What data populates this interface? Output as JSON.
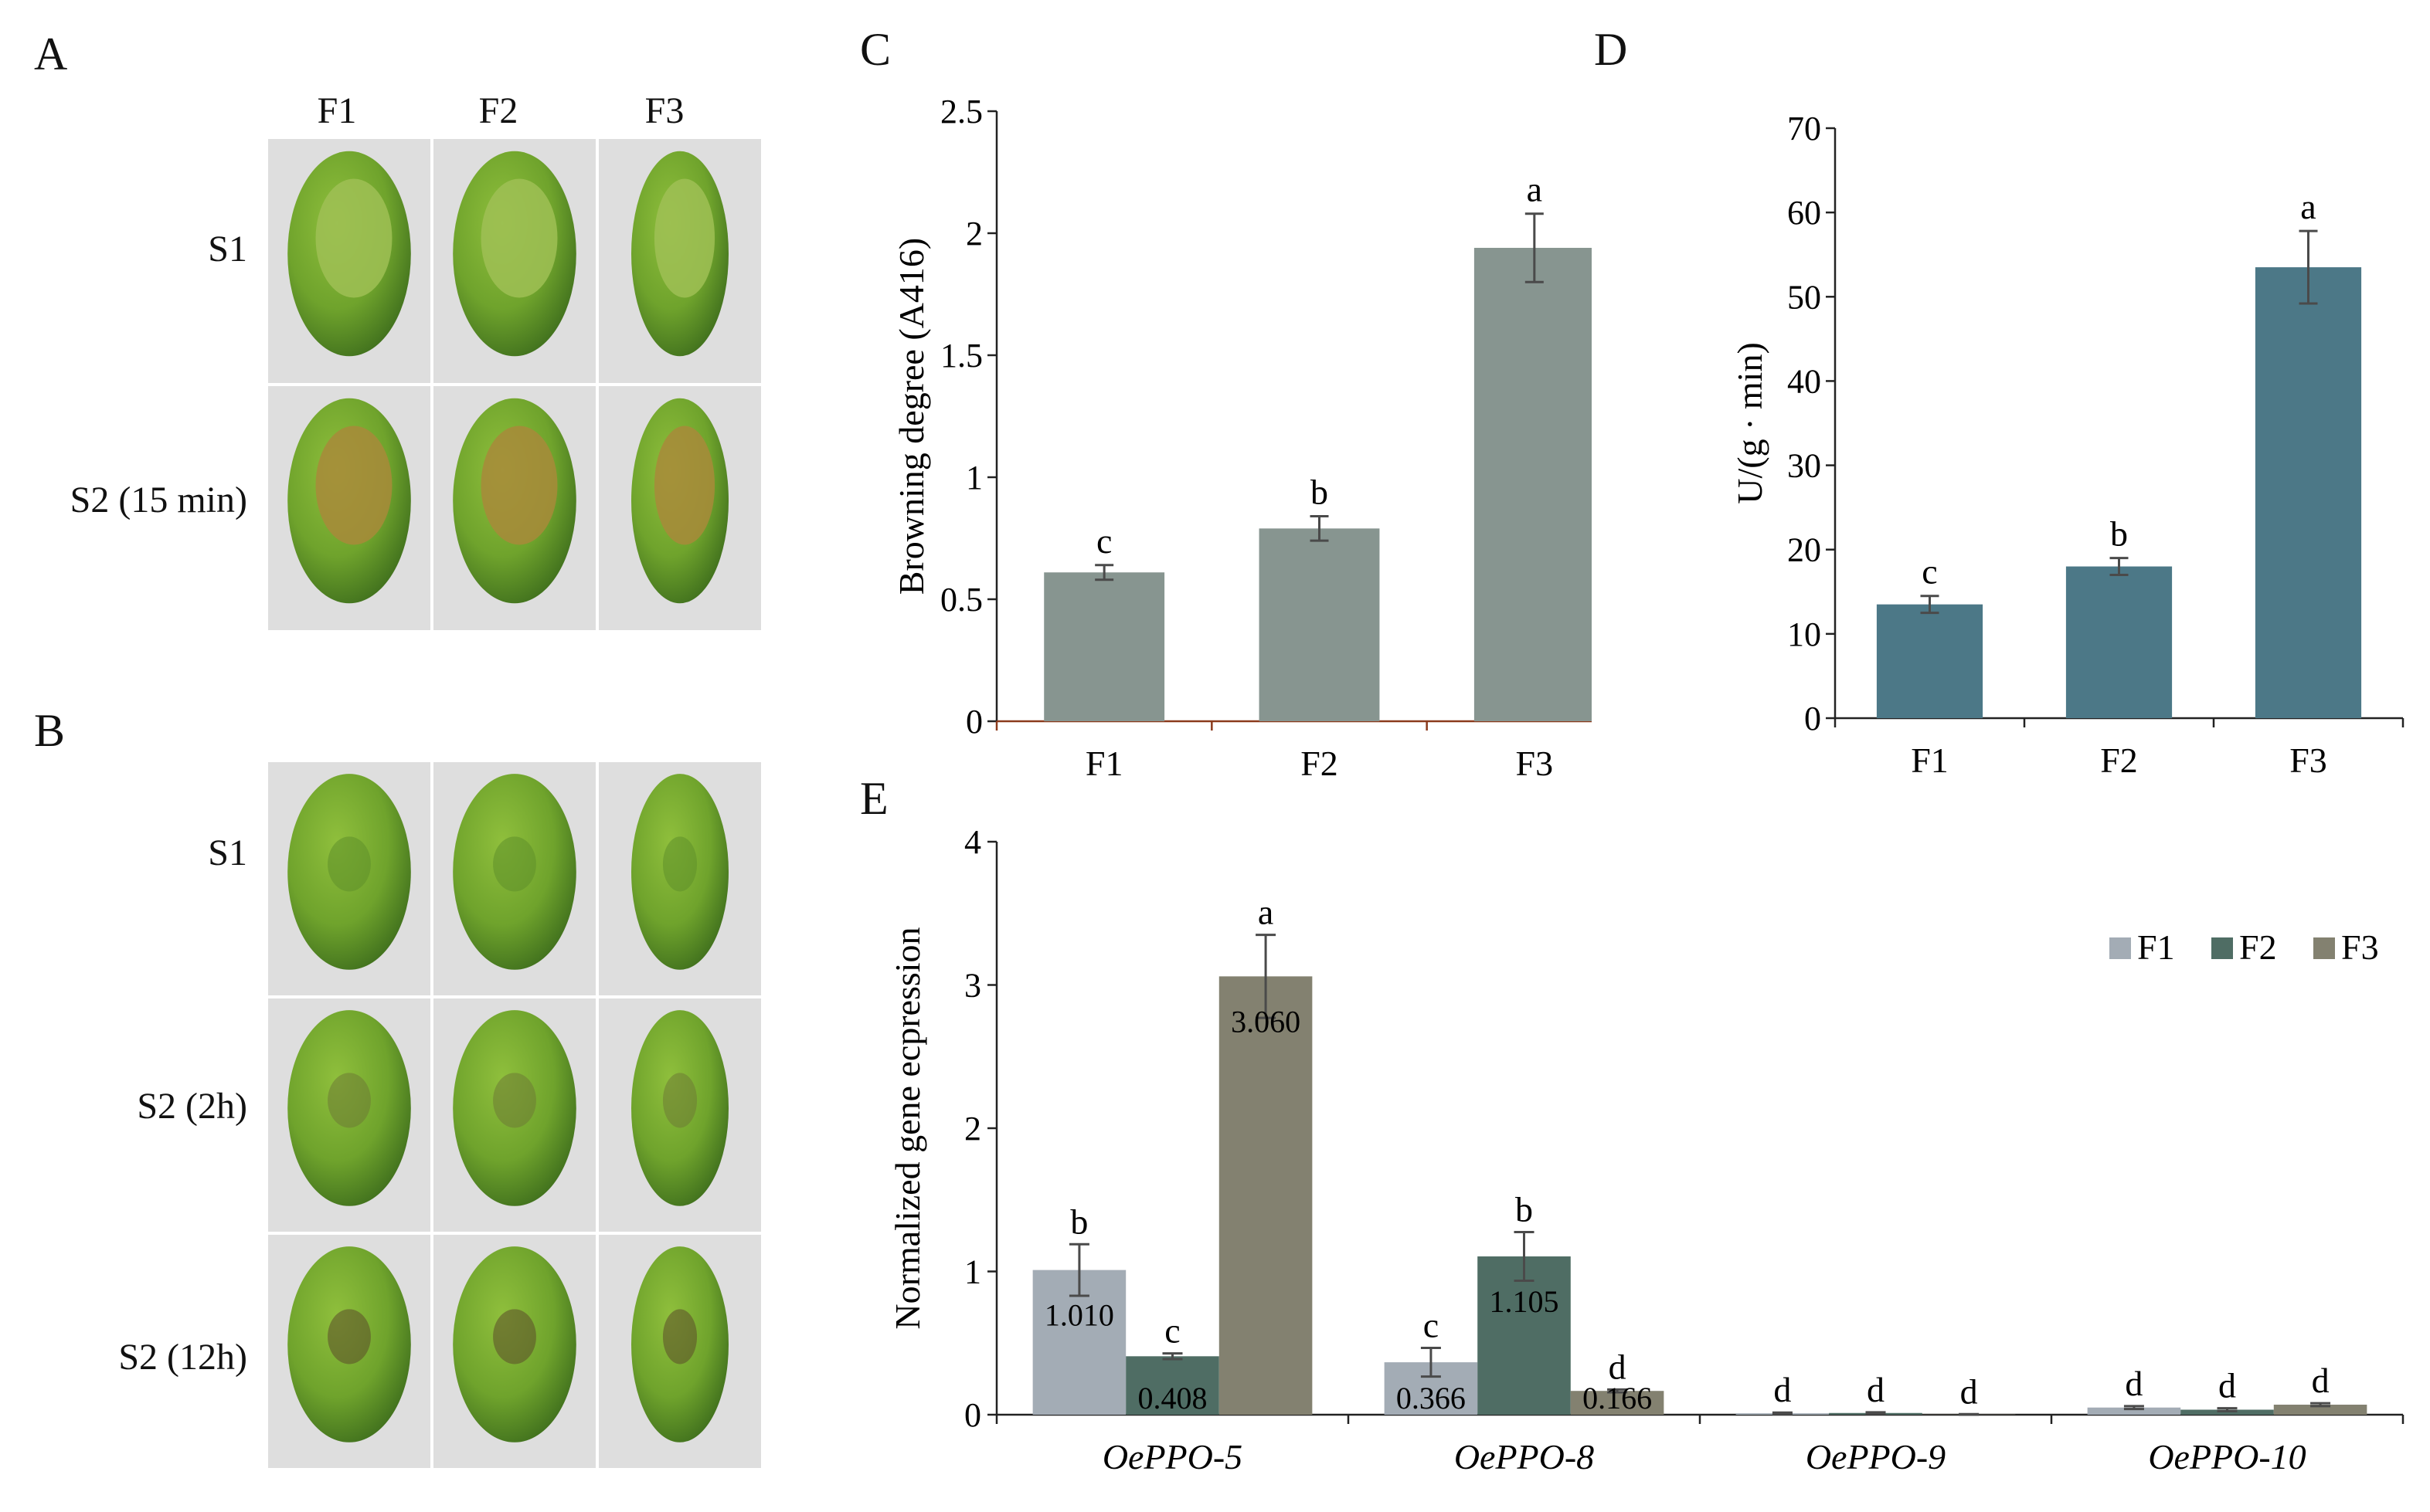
{
  "panels": {
    "A": {
      "letter": "A",
      "col_labels": [
        "F1",
        "F2",
        "F3"
      ],
      "row_labels": [
        "S1",
        "S2 (15 min)"
      ]
    },
    "B": {
      "letter": "B",
      "row_labels": [
        "S1",
        "S2 (2h)",
        "S2 (12h)"
      ]
    },
    "C": {
      "letter": "C"
    },
    "D": {
      "letter": "D"
    },
    "E": {
      "letter": "E"
    }
  },
  "colors": {
    "C_bar": "#879590",
    "C_axis": "#8b3a1c",
    "D_bar": "#4c7887",
    "E_F1": "#a3acb5",
    "E_F2": "#4f6d64",
    "E_F3": "#838170",
    "error": "#4a4a4a",
    "olive_light": "#8fbf3c",
    "olive_mid": "#6fa32c",
    "olive_dark": "#3f6f1d",
    "photo_bg": "#dedede"
  },
  "chart_data": [
    {
      "id": "C",
      "type": "bar",
      "title": "",
      "categories": [
        "F1",
        "F2",
        "F3"
      ],
      "values": [
        0.61,
        0.79,
        1.94
      ],
      "errors": [
        0.03,
        0.05,
        0.14
      ],
      "sig": [
        "c",
        "b",
        "a"
      ],
      "ylabel": "Browning degree (A416)",
      "ylim": [
        0,
        2.5
      ],
      "yticks": [
        0,
        0.5,
        1,
        1.5,
        2,
        2.5
      ],
      "ytick_labels": [
        "0",
        "0.5",
        "1",
        "1.5",
        "2",
        "2.5"
      ]
    },
    {
      "id": "D",
      "type": "bar",
      "title": "",
      "categories": [
        "F1",
        "F2",
        "F3"
      ],
      "values": [
        13.5,
        18,
        53.5
      ],
      "errors": [
        1.0,
        1.0,
        4.3
      ],
      "sig": [
        "c",
        "b",
        "a"
      ],
      "ylabel": "U/(g · min)",
      "ylim": [
        0,
        70
      ],
      "yticks": [
        0,
        10,
        20,
        30,
        40,
        50,
        60,
        70
      ],
      "ytick_labels": [
        "0",
        "10",
        "20",
        "30",
        "40",
        "50",
        "60",
        "70"
      ]
    },
    {
      "id": "E",
      "type": "bar",
      "title": "",
      "categories": [
        "OePPO-5",
        "OePPO-8",
        "OePPO-9",
        "OePPO-10"
      ],
      "series": [
        {
          "name": "F1",
          "values": [
            1.01,
            0.366,
            0.01,
            0.05
          ],
          "errors": [
            0.18,
            0.1,
            0.005,
            0.01
          ],
          "sig": [
            "b",
            "c",
            "d",
            "d"
          ],
          "labels": [
            "1.010",
            "0.366",
            "",
            ""
          ]
        },
        {
          "name": "F2",
          "values": [
            0.408,
            1.105,
            0.012,
            0.035
          ],
          "errors": [
            0.02,
            0.17,
            0.005,
            0.01
          ],
          "sig": [
            "c",
            "b",
            "d",
            "d"
          ],
          "labels": [
            "0.408",
            "1.105",
            "",
            ""
          ]
        },
        {
          "name": "F3",
          "values": [
            3.06,
            0.166,
            0.002,
            0.07
          ],
          "errors": [
            0.29,
            0.01,
            0.002,
            0.01
          ],
          "sig": [
            "a",
            "d",
            "d",
            "d"
          ],
          "labels": [
            "3.060",
            "0.166",
            "",
            ""
          ]
        }
      ],
      "ylabel": "Normalized  gene ecpression",
      "ylim": [
        0,
        4
      ],
      "yticks": [
        0,
        1,
        2,
        3,
        4
      ],
      "ytick_labels": [
        "0",
        "1",
        "2",
        "3",
        "4"
      ],
      "legend": [
        "F1",
        "F2",
        "F3"
      ],
      "legend_position": "top-right"
    }
  ]
}
